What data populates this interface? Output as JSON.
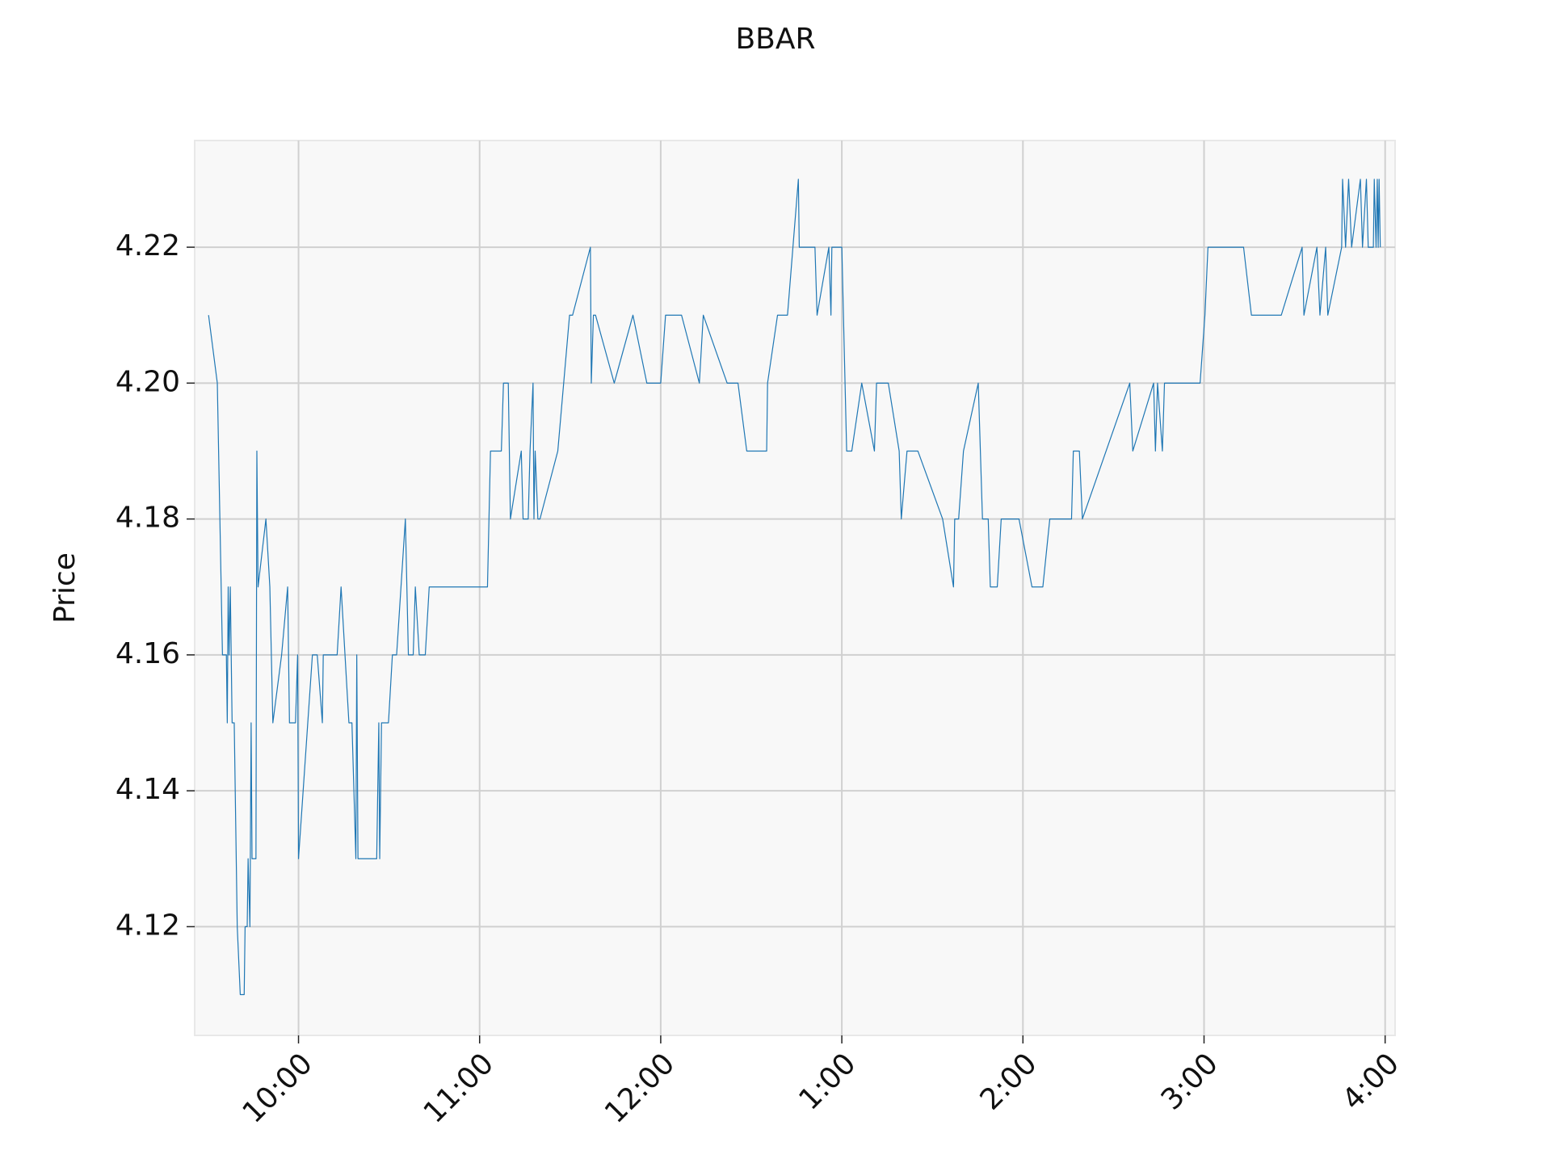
{
  "chart_data": {
    "type": "line",
    "title": "BBAR",
    "y_label": "Price",
    "x": [
      570.2,
      573.1,
      574.8,
      576.1,
      576.4,
      576.7,
      577.0,
      577.4,
      578.0,
      578.7,
      579.7,
      580.7,
      582.0,
      582.3,
      583.0,
      583.3,
      583.9,
      584.3,
      584.6,
      585.9,
      586.2,
      586.6,
      589.2,
      590.5,
      591.5,
      594.4,
      596.4,
      597.0,
      599.0,
      599.7,
      600.0,
      604.6,
      606.2,
      607.9,
      608.2,
      612.8,
      614.1,
      616.7,
      617.7,
      619.0,
      619.3,
      619.7,
      625.9,
      626.6,
      626.9,
      627.5,
      629.8,
      631.1,
      632.5,
      635.4,
      636.4,
      638.0,
      638.7,
      640.0,
      642.0,
      643.3,
      662.6,
      663.6,
      667.2,
      667.9,
      669.5,
      670.2,
      673.8,
      674.4,
      676.1,
      676.7,
      677.7,
      678.0,
      678.4,
      679.3,
      680.0,
      685.9,
      689.8,
      690.8,
      696.7,
      697.0,
      697.7,
      698.4,
      704.6,
      710.8,
      715.4,
      720.0,
      721.6,
      726.9,
      732.8,
      734.1,
      742.0,
      745.6,
      748.5,
      755.1,
      755.4,
      758.7,
      762.0,
      765.6,
      765.9,
      771.1,
      771.8,
      775.7,
      776.4,
      776.7,
      780.0,
      781.6,
      783.3,
      786.6,
      790.8,
      791.5,
      795.4,
      799.0,
      799.7,
      801.6,
      805.2,
      813.4,
      817.0,
      817.4,
      818.7,
      820.3,
      825.2,
      825.9,
      826.6,
      828.5,
      829.2,
      831.5,
      832.8,
      838.7,
      843.0,
      846.6,
      848.9,
      856.1,
      856.7,
      858.7,
      859.7,
      875.4,
      876.4,
      883.3,
      883.9,
      884.6,
      886.2,
      886.9,
      898.7,
      900.3,
      901.3,
      913.1,
      915.7,
      925.6,
      932.5,
      933.1,
      937.4,
      938.4,
      940.3,
      941.0,
      945.6,
      945.9,
      946.9,
      947.9,
      948.9,
      951.8,
      952.5,
      953.8,
      954.4,
      956.1,
      956.4,
      957.0,
      957.4,
      957.7,
      958.0,
      958.4
    ],
    "series": [
      {
        "name": "BBAR",
        "color": "#1f77b4",
        "values": [
          4.21,
          4.2,
          4.16,
          4.16,
          4.15,
          4.17,
          4.16,
          4.17,
          4.15,
          4.15,
          4.12,
          4.11,
          4.11,
          4.12,
          4.12,
          4.13,
          4.12,
          4.15,
          4.13,
          4.13,
          4.19,
          4.17,
          4.18,
          4.17,
          4.15,
          4.16,
          4.17,
          4.15,
          4.15,
          4.16,
          4.13,
          4.16,
          4.16,
          4.15,
          4.16,
          4.16,
          4.17,
          4.15,
          4.15,
          4.13,
          4.16,
          4.13,
          4.13,
          4.15,
          4.13,
          4.15,
          4.15,
          4.16,
          4.16,
          4.18,
          4.16,
          4.16,
          4.17,
          4.16,
          4.16,
          4.17,
          4.17,
          4.19,
          4.19,
          4.2,
          4.2,
          4.18,
          4.19,
          4.18,
          4.18,
          4.19,
          4.2,
          4.18,
          4.19,
          4.18,
          4.18,
          4.19,
          4.21,
          4.21,
          4.22,
          4.2,
          4.21,
          4.21,
          4.2,
          4.21,
          4.2,
          4.2,
          4.21,
          4.21,
          4.2,
          4.21,
          4.2,
          4.2,
          4.19,
          4.19,
          4.2,
          4.21,
          4.21,
          4.23,
          4.22,
          4.22,
          4.21,
          4.22,
          4.21,
          4.22,
          4.22,
          4.19,
          4.19,
          4.2,
          4.19,
          4.2,
          4.2,
          4.19,
          4.18,
          4.19,
          4.19,
          4.18,
          4.17,
          4.18,
          4.18,
          4.19,
          4.2,
          4.19,
          4.18,
          4.18,
          4.17,
          4.17,
          4.18,
          4.18,
          4.17,
          4.17,
          4.18,
          4.18,
          4.19,
          4.19,
          4.18,
          4.2,
          4.19,
          4.2,
          4.19,
          4.2,
          4.19,
          4.2,
          4.2,
          4.21,
          4.22,
          4.22,
          4.21,
          4.21,
          4.22,
          4.21,
          4.22,
          4.21,
          4.22,
          4.21,
          4.22,
          4.23,
          4.22,
          4.23,
          4.22,
          4.23,
          4.22,
          4.23,
          4.22,
          4.22,
          4.23,
          4.22,
          4.23,
          4.22,
          4.23,
          4.22
        ]
      }
    ],
    "xlim": [
      565.6,
      963.3
    ],
    "xticks": [
      {
        "value": 600,
        "label": "10:00"
      },
      {
        "value": 660,
        "label": "11:00"
      },
      {
        "value": 720,
        "label": "12:00"
      },
      {
        "value": 780,
        "label": "1:00"
      },
      {
        "value": 840,
        "label": "2:00"
      },
      {
        "value": 900,
        "label": "3:00"
      },
      {
        "value": 960,
        "label": "4:00"
      }
    ],
    "ylim": [
      4.104,
      4.2357
    ],
    "yticks": [
      4.12,
      4.14,
      4.16,
      4.18,
      {
        "value": 4.2,
        "label": "4.20"
      },
      4.22
    ],
    "grid": true
  }
}
